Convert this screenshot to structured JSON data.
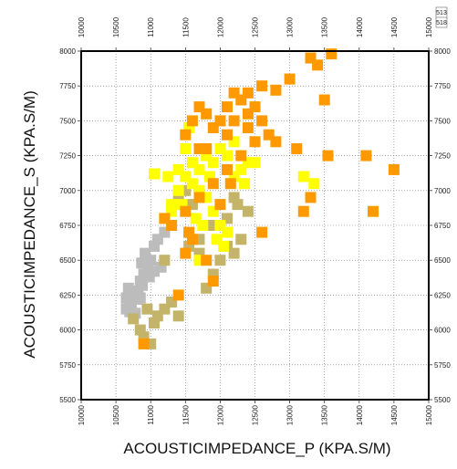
{
  "chart_data": {
    "type": "scatter",
    "xlabel": "ACOUSTICIMPEDANCE_P (KPA.S/M)",
    "ylabel": "ACOUSTICIMPEDANCE_S (KPA.S/M)",
    "xlim": [
      10000,
      15000
    ],
    "ylim": [
      5500,
      8000
    ],
    "x_ticks": [
      "10000",
      "10500",
      "11000",
      "11500",
      "12000",
      "12500",
      "13000",
      "13500",
      "14000",
      "14500",
      "15000"
    ],
    "y_ticks": [
      "5500",
      "5750",
      "6000",
      "6250",
      "6500",
      "6750",
      "7000",
      "7250",
      "7500",
      "7750",
      "8000"
    ],
    "grid": true,
    "legend_fragments": [
      "513",
      "518"
    ],
    "colors": {
      "orange": "#ff9900",
      "yellow": "#ffff00",
      "olive": "#c4b469",
      "gray": "#bcbcbc"
    },
    "series": [
      {
        "color": "gray",
        "points": [
          [
            10650,
            6150
          ],
          [
            10700,
            6200
          ],
          [
            10750,
            6250
          ],
          [
            10680,
            6300
          ],
          [
            10720,
            6180
          ],
          [
            10800,
            6220
          ],
          [
            10850,
            6350
          ],
          [
            10900,
            6400
          ],
          [
            10950,
            6450
          ],
          [
            11000,
            6500
          ],
          [
            10780,
            6120
          ],
          [
            10820,
            6280
          ],
          [
            10880,
            6320
          ],
          [
            10920,
            6550
          ],
          [
            11050,
            6600
          ],
          [
            11100,
            6650
          ],
          [
            10700,
            6130
          ],
          [
            10760,
            6270
          ],
          [
            10850,
            6230
          ],
          [
            11150,
            6450
          ],
          [
            10650,
            6230
          ],
          [
            10980,
            6380
          ],
          [
            11200,
            6700
          ],
          [
            10870,
            6480
          ],
          [
            11050,
            6420
          ]
        ]
      },
      {
        "color": "olive",
        "points": [
          [
            10750,
            6080
          ],
          [
            10850,
            6000
          ],
          [
            10900,
            5950
          ],
          [
            11000,
            5900
          ],
          [
            11050,
            6050
          ],
          [
            11100,
            6100
          ],
          [
            11200,
            6150
          ],
          [
            11300,
            6200
          ],
          [
            11400,
            6100
          ],
          [
            10950,
            6150
          ],
          [
            11550,
            6600
          ],
          [
            11700,
            6650
          ],
          [
            11800,
            6300
          ],
          [
            11900,
            6400
          ],
          [
            12000,
            6500
          ],
          [
            12100,
            6600
          ],
          [
            12200,
            6550
          ],
          [
            12300,
            6650
          ],
          [
            12400,
            6850
          ],
          [
            12250,
            6900
          ],
          [
            12100,
            6800
          ],
          [
            11850,
            6750
          ],
          [
            11600,
            6900
          ],
          [
            11400,
            6950
          ],
          [
            11500,
            7000
          ],
          [
            12200,
            6950
          ],
          [
            11700,
            6550
          ],
          [
            11200,
            6500
          ]
        ]
      },
      {
        "color": "yellow",
        "points": [
          [
            11200,
            6800
          ],
          [
            11300,
            6900
          ],
          [
            11400,
            7000
          ],
          [
            11500,
            7100
          ],
          [
            11600,
            7200
          ],
          [
            11700,
            7150
          ],
          [
            11800,
            7250
          ],
          [
            11900,
            7200
          ],
          [
            12000,
            7300
          ],
          [
            12100,
            7250
          ],
          [
            12200,
            7100
          ],
          [
            12300,
            7150
          ],
          [
            12400,
            7200
          ],
          [
            11500,
            7300
          ],
          [
            11600,
            7050
          ],
          [
            11700,
            7000
          ],
          [
            11800,
            6950
          ],
          [
            11900,
            6850
          ],
          [
            12000,
            6750
          ],
          [
            12100,
            6700
          ],
          [
            11300,
            6850
          ],
          [
            11400,
            7150
          ],
          [
            11250,
            7100
          ],
          [
            11750,
            6750
          ],
          [
            11950,
            6650
          ],
          [
            12200,
            7350
          ],
          [
            12500,
            7200
          ],
          [
            13200,
            7100
          ],
          [
            13350,
            7050
          ],
          [
            11050,
            7120
          ],
          [
            11550,
            7450
          ],
          [
            11850,
            7100
          ],
          [
            11650,
            6800
          ],
          [
            12050,
            6600
          ],
          [
            11700,
            6500
          ],
          [
            12350,
            7050
          ],
          [
            11450,
            6900
          ]
        ]
      },
      {
        "color": "orange",
        "points": [
          [
            11500,
            7400
          ],
          [
            11600,
            7500
          ],
          [
            11700,
            7600
          ],
          [
            11800,
            7550
          ],
          [
            11900,
            7450
          ],
          [
            12000,
            7500
          ],
          [
            12100,
            7600
          ],
          [
            12200,
            7700
          ],
          [
            12300,
            7650
          ],
          [
            12400,
            7550
          ],
          [
            12500,
            7600
          ],
          [
            12600,
            7500
          ],
          [
            12700,
            7400
          ],
          [
            12800,
            7350
          ],
          [
            12400,
            7700
          ],
          [
            12600,
            7750
          ],
          [
            12800,
            7720
          ],
          [
            13000,
            7800
          ],
          [
            13100,
            7300
          ],
          [
            13200,
            6850
          ],
          [
            13300,
            6950
          ],
          [
            13500,
            7650
          ],
          [
            13400,
            7900
          ],
          [
            13600,
            7980
          ],
          [
            13300,
            7950
          ],
          [
            13550,
            7250
          ],
          [
            14100,
            7250
          ],
          [
            14500,
            7150
          ],
          [
            14200,
            6850
          ],
          [
            12600,
            6700
          ],
          [
            11500,
            6550
          ],
          [
            11400,
            6250
          ],
          [
            10900,
            5900
          ],
          [
            11200,
            6800
          ],
          [
            11300,
            6750
          ],
          [
            11500,
            6850
          ],
          [
            11700,
            6950
          ],
          [
            11900,
            7050
          ],
          [
            12100,
            7150
          ],
          [
            12300,
            7250
          ],
          [
            12500,
            7350
          ],
          [
            12100,
            7400
          ],
          [
            11800,
            7300
          ],
          [
            11600,
            6650
          ],
          [
            11900,
            6350
          ],
          [
            12000,
            6900
          ],
          [
            12150,
            7050
          ],
          [
            11800,
            6500
          ],
          [
            12400,
            7450
          ],
          [
            12200,
            7500
          ],
          [
            11700,
            7300
          ],
          [
            11550,
            6700
          ]
        ]
      }
    ]
  }
}
